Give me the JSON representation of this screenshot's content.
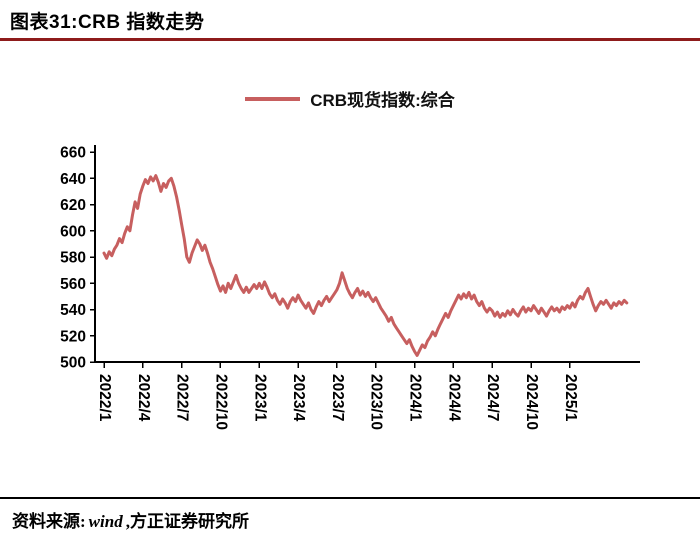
{
  "page": {
    "title": "图表31:CRB 指数走势"
  },
  "legend": {
    "label": "CRB现货指数:综合"
  },
  "footer": {
    "prefix": "资料来源:",
    "source": "wind",
    "suffix": ",方正证券研究所"
  },
  "colors": {
    "title_rule": "#8E1B1B",
    "series_line": "#C75F5F",
    "axis": "#000000"
  },
  "chart_data": {
    "type": "line",
    "title": "CRB现货指数:综合",
    "ylabel": "",
    "xlabel": "",
    "ylim": [
      500,
      660
    ],
    "y_tick_step": 20,
    "grid": false,
    "legend_position": "top-center",
    "x_labels": [
      "2022/1",
      "2022/4",
      "2022/7",
      "2022/10",
      "2023/1",
      "2023/4",
      "2023/7",
      "2023/10",
      "2024/1",
      "2024/4",
      "2024/7",
      "2024/10",
      "2025/1"
    ],
    "x_label_month_offsets": [
      0,
      3,
      6,
      9,
      12,
      15,
      18,
      21,
      24,
      27,
      30,
      33,
      36
    ],
    "x_axis_months_span": 41.4,
    "series": [
      {
        "name": "CRB现货指数:综合",
        "color": "#C75F5F",
        "x_start_month_offset": 0,
        "x_step_months": 0.2,
        "values": [
          583,
          579,
          584,
          581,
          586,
          589,
          594,
          591,
          598,
          603,
          600,
          612,
          622,
          617,
          628,
          634,
          639,
          636,
          641,
          638,
          642,
          637,
          630,
          636,
          633,
          638,
          640,
          634,
          626,
          616,
          605,
          594,
          580,
          576,
          583,
          588,
          593,
          590,
          585,
          589,
          583,
          576,
          571,
          565,
          559,
          554,
          558,
          553,
          560,
          556,
          561,
          566,
          560,
          556,
          553,
          557,
          553,
          556,
          559,
          556,
          560,
          556,
          561,
          557,
          552,
          549,
          552,
          547,
          544,
          548,
          545,
          541,
          546,
          549,
          546,
          551,
          547,
          544,
          541,
          545,
          540,
          537,
          542,
          546,
          543,
          547,
          550,
          546,
          549,
          552,
          555,
          560,
          568,
          562,
          556,
          552,
          549,
          553,
          556,
          551,
          554,
          550,
          553,
          549,
          546,
          549,
          545,
          541,
          538,
          535,
          531,
          534,
          529,
          526,
          523,
          520,
          517,
          514,
          517,
          512,
          508,
          505,
          509,
          513,
          511,
          516,
          519,
          523,
          520,
          525,
          529,
          533,
          537,
          534,
          539,
          543,
          547,
          551,
          548,
          552,
          549,
          553,
          548,
          551,
          546,
          543,
          546,
          541,
          538,
          541,
          539,
          535,
          538,
          534,
          537,
          535,
          539,
          536,
          540,
          537,
          535,
          539,
          542,
          538,
          541,
          539,
          543,
          540,
          537,
          541,
          538,
          535,
          539,
          542,
          539,
          541,
          538,
          542,
          540,
          543,
          541,
          545,
          542,
          547,
          550,
          548,
          553,
          556,
          550,
          544,
          539,
          543,
          546,
          544,
          547,
          544,
          541,
          545,
          543,
          546,
          544,
          547,
          545
        ]
      }
    ]
  }
}
